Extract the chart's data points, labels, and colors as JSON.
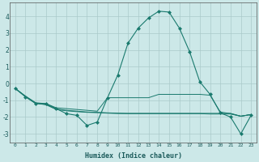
{
  "title": "",
  "xlabel": "Humidex (Indice chaleur)",
  "bg_color": "#cce8e8",
  "grid_color": "#aacaca",
  "line_color": "#1a7a6e",
  "xlim": [
    -0.5,
    23.5
  ],
  "ylim": [
    -3.5,
    4.8
  ],
  "yticks": [
    -3,
    -2,
    -1,
    0,
    1,
    2,
    3,
    4
  ],
  "xticks": [
    0,
    1,
    2,
    3,
    4,
    5,
    6,
    7,
    8,
    9,
    10,
    11,
    12,
    13,
    14,
    15,
    16,
    17,
    18,
    19,
    20,
    21,
    22,
    23
  ],
  "series": [
    [
      0,
      -0.3
    ],
    [
      1,
      -0.8
    ],
    [
      2,
      -1.2
    ],
    [
      3,
      -1.2
    ],
    [
      4,
      -1.5
    ],
    [
      5,
      -1.8
    ],
    [
      6,
      -1.9
    ],
    [
      7,
      -2.5
    ],
    [
      8,
      -2.3
    ],
    [
      9,
      -0.85
    ],
    [
      10,
      0.5
    ],
    [
      11,
      2.4
    ],
    [
      12,
      3.3
    ],
    [
      13,
      3.9
    ],
    [
      14,
      4.3
    ],
    [
      15,
      4.25
    ],
    [
      16,
      3.3
    ],
    [
      17,
      1.9
    ],
    [
      18,
      0.1
    ],
    [
      19,
      -0.65
    ],
    [
      20,
      -1.75
    ],
    [
      21,
      -2.0
    ],
    [
      22,
      -3.0
    ],
    [
      23,
      -1.9
    ]
  ],
  "series2": [
    [
      0,
      -0.3
    ],
    [
      1,
      -0.75
    ],
    [
      2,
      -1.15
    ],
    [
      3,
      -1.2
    ],
    [
      4,
      -1.45
    ],
    [
      5,
      -1.5
    ],
    [
      6,
      -1.55
    ],
    [
      7,
      -1.6
    ],
    [
      8,
      -1.65
    ],
    [
      9,
      -0.85
    ],
    [
      10,
      -0.85
    ],
    [
      11,
      -0.85
    ],
    [
      12,
      -0.85
    ],
    [
      13,
      -0.85
    ],
    [
      14,
      -0.65
    ],
    [
      15,
      -0.65
    ],
    [
      16,
      -0.65
    ],
    [
      17,
      -0.65
    ],
    [
      18,
      -0.65
    ],
    [
      19,
      -0.7
    ],
    [
      20,
      -1.7
    ],
    [
      21,
      -1.8
    ],
    [
      22,
      -1.95
    ],
    [
      23,
      -1.85
    ]
  ],
  "series3": [
    [
      0,
      -0.3
    ],
    [
      1,
      -0.78
    ],
    [
      2,
      -1.18
    ],
    [
      3,
      -1.25
    ],
    [
      4,
      -1.52
    ],
    [
      5,
      -1.6
    ],
    [
      6,
      -1.65
    ],
    [
      7,
      -1.7
    ],
    [
      8,
      -1.72
    ],
    [
      9,
      -1.75
    ],
    [
      10,
      -1.77
    ],
    [
      11,
      -1.78
    ],
    [
      12,
      -1.78
    ],
    [
      13,
      -1.78
    ],
    [
      14,
      -1.78
    ],
    [
      15,
      -1.78
    ],
    [
      16,
      -1.78
    ],
    [
      17,
      -1.78
    ],
    [
      18,
      -1.78
    ],
    [
      19,
      -1.78
    ],
    [
      20,
      -1.78
    ],
    [
      21,
      -1.78
    ],
    [
      22,
      -1.95
    ],
    [
      23,
      -1.85
    ]
  ],
  "series4": [
    [
      0,
      -0.3
    ],
    [
      1,
      -0.78
    ],
    [
      2,
      -1.18
    ],
    [
      3,
      -1.27
    ],
    [
      4,
      -1.55
    ],
    [
      5,
      -1.63
    ],
    [
      6,
      -1.68
    ],
    [
      7,
      -1.72
    ],
    [
      8,
      -1.74
    ],
    [
      9,
      -1.77
    ],
    [
      10,
      -1.79
    ],
    [
      11,
      -1.8
    ],
    [
      12,
      -1.8
    ],
    [
      13,
      -1.8
    ],
    [
      14,
      -1.8
    ],
    [
      15,
      -1.8
    ],
    [
      16,
      -1.8
    ],
    [
      17,
      -1.8
    ],
    [
      18,
      -1.8
    ],
    [
      19,
      -1.82
    ],
    [
      20,
      -1.82
    ],
    [
      21,
      -1.82
    ],
    [
      22,
      -1.95
    ],
    [
      23,
      -1.85
    ]
  ]
}
